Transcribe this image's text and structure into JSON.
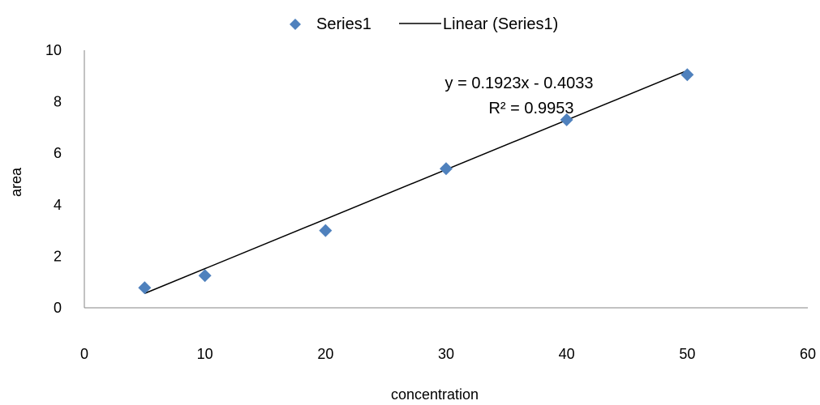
{
  "chart_data": {
    "type": "scatter",
    "xlabel": "concentration",
    "ylabel": "area",
    "xlim": [
      0,
      60
    ],
    "ylim": [
      0,
      10
    ],
    "x_ticks": [
      0,
      10,
      20,
      30,
      40,
      50,
      60
    ],
    "y_ticks": [
      0,
      2,
      4,
      6,
      8,
      10
    ],
    "grid": false,
    "legend_position": "top-center",
    "series": [
      {
        "name": "Series1",
        "marker": "diamond",
        "color": "#4F81BD",
        "x": [
          5,
          10,
          20,
          30,
          40,
          50
        ],
        "y": [
          0.78,
          1.25,
          3.0,
          5.4,
          7.3,
          9.05
        ]
      }
    ],
    "trendline": {
      "name": "Linear (Series1)",
      "type": "linear",
      "color": "#000000",
      "slope": 0.1923,
      "intercept": -0.4033,
      "x_range": [
        5,
        50
      ],
      "equation_label": "y = 0.1923x - 0.4033",
      "r2_label": "R² = 0.9953"
    }
  }
}
